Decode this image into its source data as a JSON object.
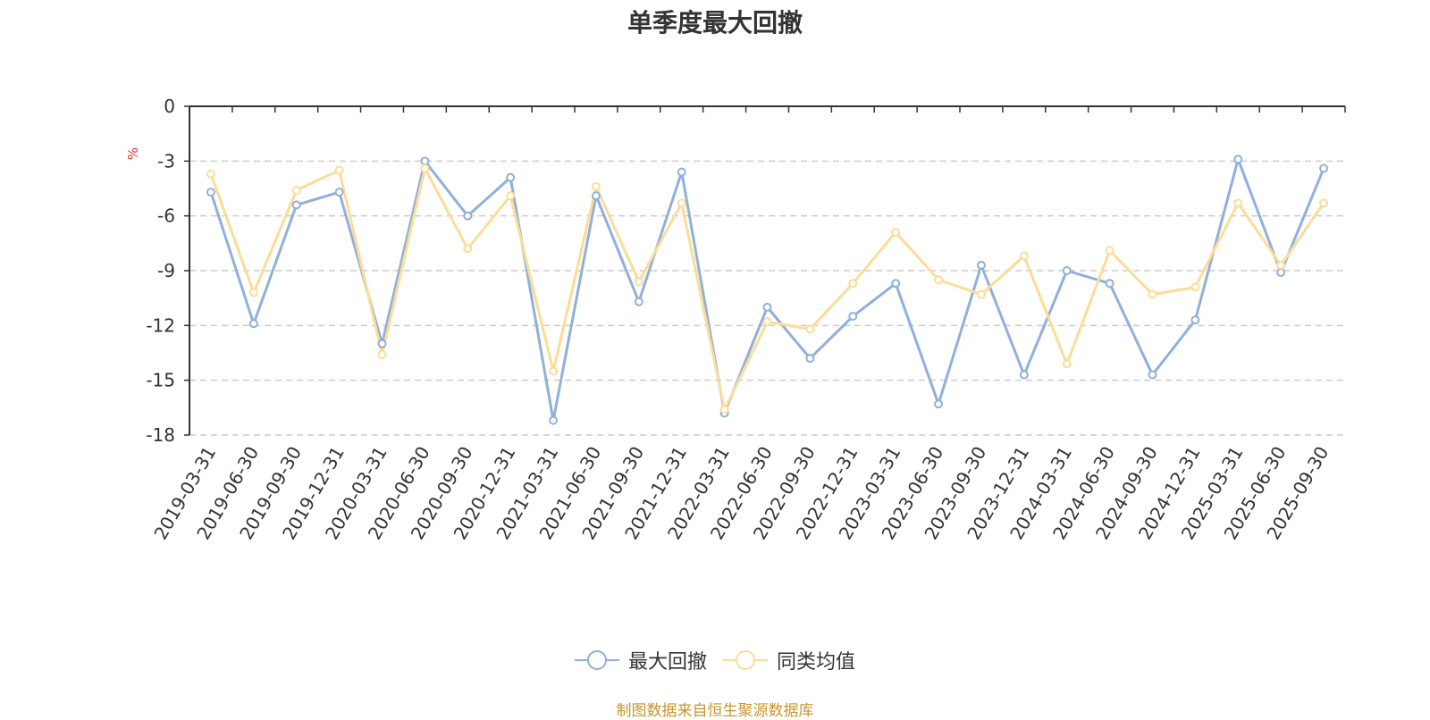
{
  "chart_data": {
    "type": "line",
    "title": "单季度最大回撤",
    "ylabel": "%",
    "ylim": [
      -18,
      0
    ],
    "yticks": [
      0,
      -3,
      -6,
      -9,
      -12,
      -15,
      -18
    ],
    "grid": true,
    "legend_position": "bottom-center",
    "categories": [
      "2019-03-31",
      "2019-06-30",
      "2019-09-30",
      "2019-12-31",
      "2020-03-31",
      "2020-06-30",
      "2020-09-30",
      "2020-12-31",
      "2021-03-31",
      "2021-06-30",
      "2021-09-30",
      "2021-12-31",
      "2022-03-31",
      "2022-06-30",
      "2022-09-30",
      "2022-12-31",
      "2023-03-31",
      "2023-06-30",
      "2023-09-30",
      "2023-12-31",
      "2024-03-31",
      "2024-06-30",
      "2024-09-30",
      "2024-12-31",
      "2025-03-31",
      "2025-06-30",
      "2025-09-30"
    ],
    "series": [
      {
        "name": "最大回撤",
        "color": "#8fb0dc",
        "values": [
          -4.7,
          -11.9,
          -5.4,
          -4.7,
          -13.0,
          -3.0,
          -6.0,
          -3.9,
          -17.2,
          -4.9,
          -10.7,
          -3.6,
          -16.8,
          -11.0,
          -13.8,
          -11.5,
          -9.7,
          -16.3,
          -8.7,
          -14.7,
          -9.0,
          -9.7,
          -14.7,
          -11.7,
          -2.9,
          -9.1,
          -3.4
        ]
      },
      {
        "name": "同类均值",
        "color": "#fddc96",
        "values": [
          -3.7,
          -10.2,
          -4.6,
          -3.5,
          -13.6,
          -3.4,
          -7.8,
          -4.9,
          -14.5,
          -4.4,
          -9.6,
          -5.3,
          -16.6,
          -11.8,
          -12.2,
          -9.7,
          -6.9,
          -9.5,
          -10.3,
          -8.2,
          -14.1,
          -7.9,
          -10.3,
          -9.9,
          -5.3,
          -8.7,
          -5.3
        ]
      }
    ]
  },
  "source_text": "制图数据来自恒生聚源数据库",
  "colors": {
    "title": "#333333",
    "axis": "#333333",
    "grid": "#cccccc",
    "unit": "#e0322c",
    "source": "#c9952f"
  }
}
